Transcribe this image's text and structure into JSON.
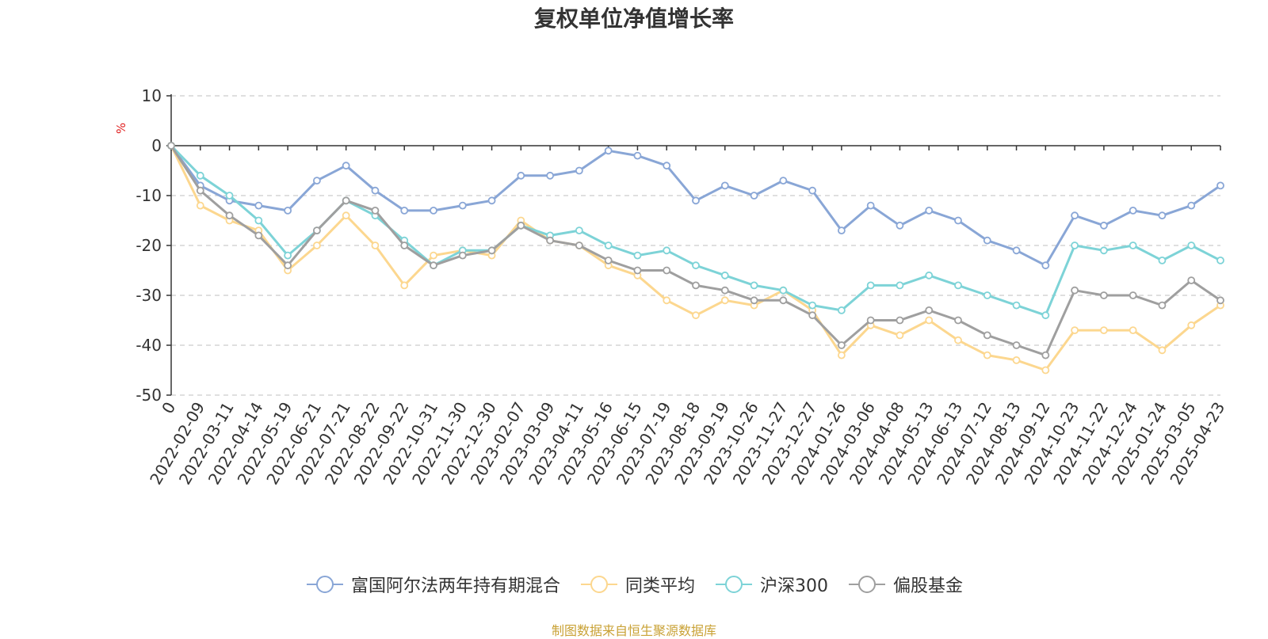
{
  "chart_data": {
    "type": "line",
    "title": "复权单位净值增长率",
    "ylabel": "%",
    "ylim": [
      -50,
      10
    ],
    "yticks": [
      10,
      0,
      -10,
      -20,
      -30,
      -40,
      -50
    ],
    "y_tick_labels": [
      "10",
      "0",
      "-10",
      "-20",
      "-30",
      "-40",
      "-50"
    ],
    "grid": true,
    "legend_position": "bottom",
    "x_tick_labels": [
      "0",
      "2022-02-09",
      "2022-03-11",
      "2022-04-14",
      "2022-05-19",
      "2022-06-21",
      "2022-07-21",
      "2022-08-22",
      "2022-09-22",
      "2022-10-31",
      "2022-11-30",
      "2022-12-30",
      "2023-02-07",
      "2023-03-09",
      "2023-04-11",
      "2023-05-16",
      "2023-06-15",
      "2023-07-19",
      "2023-08-18",
      "2023-09-19",
      "2023-10-26",
      "2023-11-27",
      "2023-12-27",
      "2024-01-26",
      "2024-03-06",
      "2024-04-08",
      "2024-05-13",
      "2024-06-13",
      "2024-07-12",
      "2024-08-13",
      "2024-09-12",
      "2024-10-23",
      "2024-11-22",
      "2024-12-24",
      "2025-01-24",
      "2025-03-05",
      "2025-04-23"
    ],
    "x_index": [
      0,
      1,
      2,
      3,
      4,
      5,
      6,
      7,
      8,
      9,
      10,
      11,
      12,
      13,
      14,
      15,
      16,
      17,
      18,
      19,
      20,
      21,
      22,
      23,
      24,
      25,
      26,
      27,
      28,
      29,
      30,
      31,
      32,
      33,
      34,
      35,
      36
    ],
    "series": [
      {
        "name": "富国阿尔法两年持有期混合",
        "color": "#89a6d6",
        "values": [
          0,
          -8,
          -11,
          -12,
          -13,
          -7,
          -4,
          -9,
          -13,
          -13,
          -12,
          -11,
          -6,
          -6,
          -5,
          -1,
          -2,
          -4,
          -11,
          -8,
          -10,
          -7,
          -9,
          -17,
          -12,
          -16,
          -13,
          -15,
          -19,
          -21,
          -24,
          -14,
          -16,
          -13,
          -14,
          -12,
          -8
        ]
      },
      {
        "name": "同类平均",
        "color": "#fcd78f",
        "values": [
          0,
          -12,
          -15,
          -17,
          -25,
          -20,
          -14,
          -20,
          -28,
          -22,
          -21,
          -22,
          -15,
          -19,
          -20,
          -24,
          -26,
          -31,
          -34,
          -31,
          -32,
          -29,
          -33,
          -42,
          -36,
          -38,
          -35,
          -39,
          -42,
          -43,
          -45,
          -37,
          -37,
          -37,
          -41,
          -36,
          -32
        ]
      },
      {
        "name": "沪深300",
        "color": "#7dd3d7",
        "values": [
          0,
          -6,
          -10,
          -15,
          -22,
          -17,
          -11,
          -14,
          -19,
          -24,
          -21,
          -21,
          -16,
          -18,
          -17,
          -20,
          -22,
          -21,
          -24,
          -26,
          -28,
          -29,
          -32,
          -33,
          -28,
          -28,
          -26,
          -28,
          -30,
          -32,
          -34,
          -20,
          -21,
          -20,
          -23,
          -20,
          -23
        ]
      },
      {
        "name": "偏股基金",
        "color": "#9f9f9f",
        "values": [
          0,
          -9,
          -14,
          -18,
          -24,
          -17,
          -11,
          -13,
          -20,
          -24,
          -22,
          -21,
          -16,
          -19,
          -20,
          -23,
          -25,
          -25,
          -28,
          -29,
          -31,
          -31,
          -34,
          -40,
          -35,
          -35,
          -33,
          -35,
          -38,
          -40,
          -42,
          -29,
          -30,
          -30,
          -32,
          -27,
          -31
        ]
      }
    ]
  },
  "legend": {
    "items": [
      {
        "label": "富国阿尔法两年持有期混合"
      },
      {
        "label": "同类平均"
      },
      {
        "label": "沪深300"
      },
      {
        "label": "偏股基金"
      }
    ]
  },
  "source_note": "制图数据来自恒生聚源数据库"
}
